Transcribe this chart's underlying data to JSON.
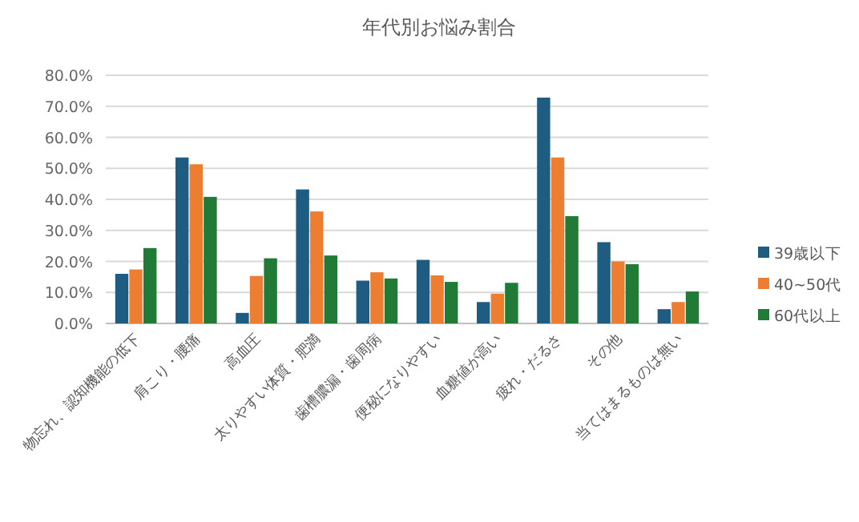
{
  "chart_data": {
    "type": "bar",
    "title": "年代別お悩み割合",
    "categories": [
      "物忘れ、認知機能の低下",
      "肩こり・腰痛",
      "高血圧",
      "太りやすい体質・肥満",
      "歯槽膿漏・歯周病",
      "便秘になりやすい",
      "血糖値が高い",
      "疲れ・だるさ",
      "その他",
      "当てはまるものは無い"
    ],
    "series": [
      {
        "name": "39歳以下",
        "color": "#1f5c82",
        "values": [
          16.0,
          53.5,
          3.4,
          43.2,
          13.8,
          20.5,
          6.9,
          72.8,
          26.2,
          4.6
        ]
      },
      {
        "name": "40~50代",
        "color": "#ed7d31",
        "values": [
          17.4,
          51.3,
          15.3,
          36.1,
          16.5,
          15.5,
          9.6,
          53.5,
          20.0,
          6.9
        ]
      },
      {
        "name": "60代以上",
        "color": "#217a36",
        "values": [
          24.3,
          40.8,
          21.0,
          21.9,
          14.5,
          13.4,
          13.1,
          34.6,
          19.1,
          10.3
        ]
      }
    ],
    "ylim": [
      0,
      80
    ],
    "yticks": [
      {
        "value": 0,
        "label": "0.0%"
      },
      {
        "value": 10,
        "label": "10.0%"
      },
      {
        "value": 20,
        "label": "20.0%"
      },
      {
        "value": 30,
        "label": "30.0%"
      },
      {
        "value": 40,
        "label": "40.0%"
      },
      {
        "value": 50,
        "label": "50.0%"
      },
      {
        "value": 60,
        "label": "60.0%"
      },
      {
        "value": 70,
        "label": "70.0%"
      },
      {
        "value": 80,
        "label": "80.0%"
      }
    ],
    "grid": "y",
    "legend": "right"
  }
}
